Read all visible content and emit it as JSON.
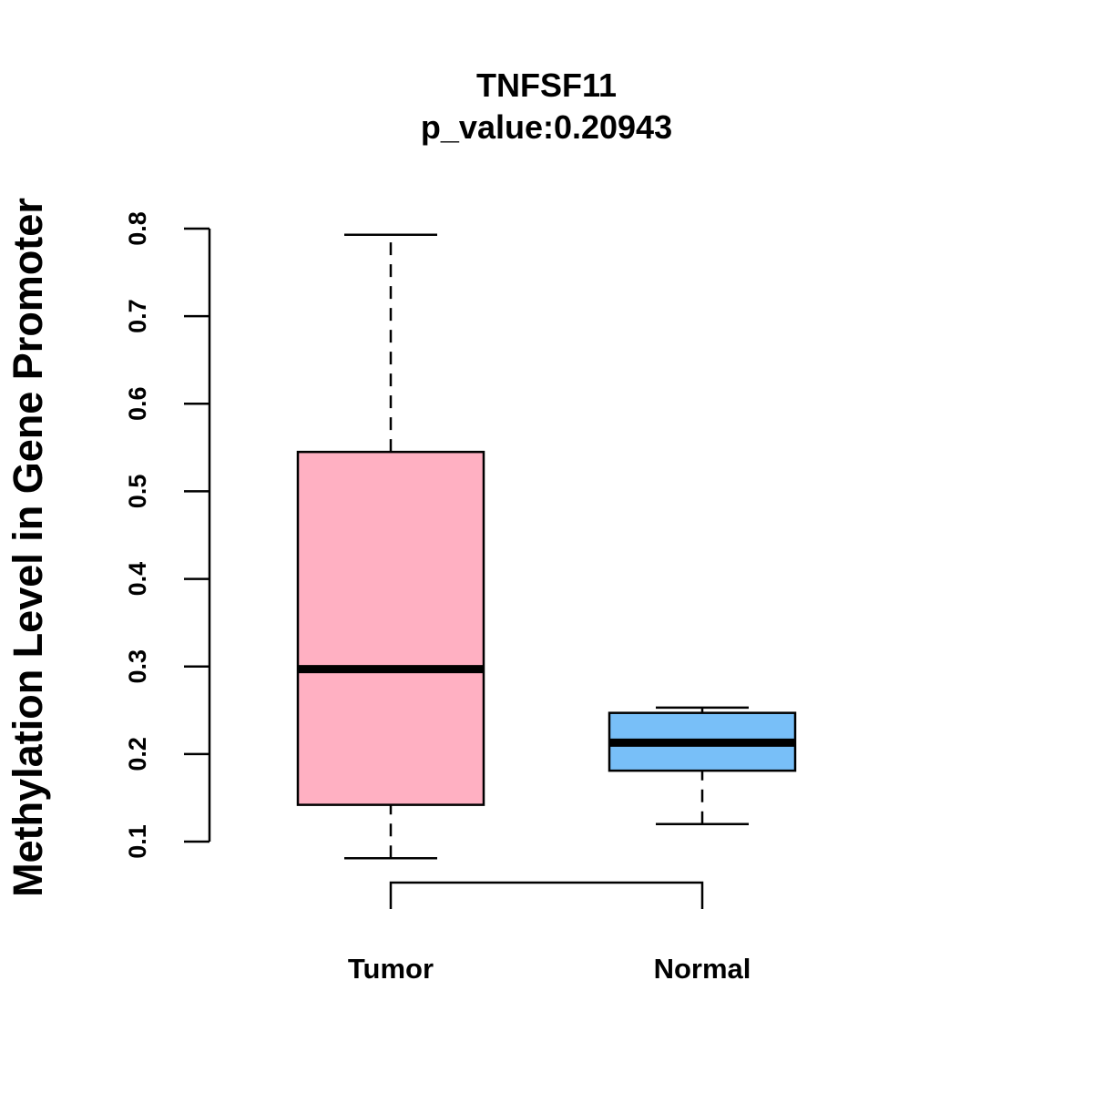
{
  "chart_data": {
    "type": "boxplot",
    "title": "TNFSF11",
    "subtitle": "p_value:0.20943",
    "xlabel": "",
    "ylabel": "Methylation Level in Gene Promoter",
    "ylim": [
      0.1,
      0.8
    ],
    "yticks": [
      "0.1",
      "0.2",
      "0.3",
      "0.4",
      "0.5",
      "0.6",
      "0.7",
      "0.8"
    ],
    "grid": false,
    "categories": [
      "Tumor",
      "Normal"
    ],
    "series": [
      {
        "name": "Tumor",
        "min": 0.081,
        "q1": 0.142,
        "median": 0.297,
        "q3": 0.545,
        "max": 0.793,
        "color": "#FFB0C2"
      },
      {
        "name": "Normal",
        "min": 0.12,
        "q1": 0.181,
        "median": 0.213,
        "q3": 0.247,
        "max": 0.253,
        "color": "#78BFF8"
      }
    ],
    "comparison_bracket": [
      "Tumor",
      "Normal"
    ]
  }
}
